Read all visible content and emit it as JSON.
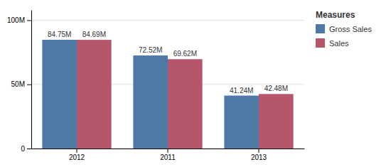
{
  "chart_data": {
    "type": "bar",
    "categories": [
      "2012",
      "2011",
      "2013"
    ],
    "series": [
      {
        "name": "Gross Sales",
        "color": "#4e79a7",
        "values": [
          84.75,
          72.52,
          41.24
        ],
        "value_labels": [
          "84.75M",
          "72.52M",
          "41.24M"
        ]
      },
      {
        "name": "Sales",
        "color": "#b5566a",
        "values": [
          84.69,
          69.62,
          42.48
        ],
        "value_labels": [
          "84.69M",
          "69.62M",
          "42.48M"
        ]
      }
    ],
    "legend_title": "Measures",
    "ylim": [
      0,
      108
    ],
    "yticks": [
      0,
      {
        "value": 50,
        "label": "50M"
      },
      {
        "value": 100,
        "label": "100M"
      }
    ],
    "grid": true,
    "legend": "upper right",
    "data_labels": true
  }
}
